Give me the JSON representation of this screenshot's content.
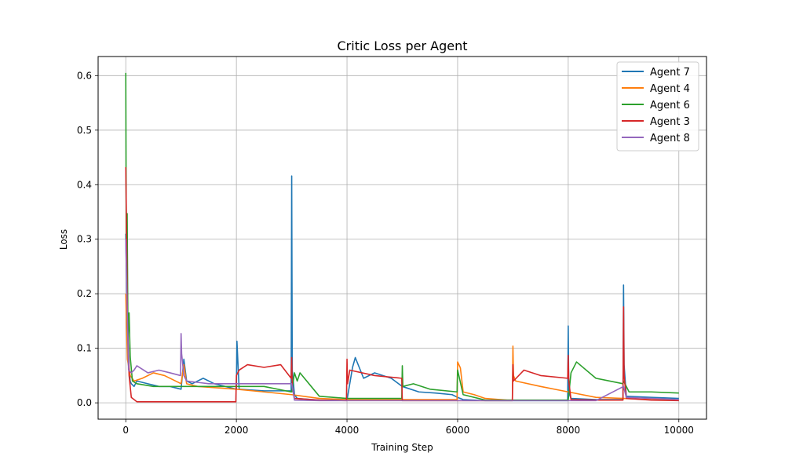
{
  "chart_data": {
    "type": "line",
    "title": "Critic Loss per Agent",
    "xlabel": "Training Step",
    "ylabel": "Loss",
    "xlim": [
      -500,
      10500
    ],
    "ylim": [
      -0.03,
      0.635
    ],
    "xticks": [
      0,
      2000,
      4000,
      6000,
      8000,
      10000
    ],
    "xtick_labels": [
      "0",
      "2000",
      "4000",
      "6000",
      "8000",
      "10000"
    ],
    "yticks": [
      0.0,
      0.1,
      0.2,
      0.3,
      0.4,
      0.5,
      0.6
    ],
    "ytick_labels": [
      "0.0",
      "0.1",
      "0.2",
      "0.3",
      "0.4",
      "0.5",
      "0.6"
    ],
    "grid": true,
    "legend_position": "top-right",
    "series": [
      {
        "name": "Agent 7",
        "color": "#1f77b4",
        "x": [
          0,
          20,
          40,
          60,
          80,
          100,
          150,
          200,
          400,
          600,
          800,
          1000,
          1050,
          1100,
          1200,
          1400,
          1600,
          1800,
          2000,
          2010,
          2050,
          2500,
          2990,
          3000,
          3010,
          3050,
          3100,
          3500,
          4000,
          4100,
          4150,
          4300,
          4500,
          4800,
          5000,
          5300,
          5600,
          5900,
          6000,
          6100,
          6500,
          7000,
          7500,
          7990,
          8000,
          8010,
          8050,
          8500,
          8990,
          9000,
          9010,
          9050,
          9500,
          10000
        ],
        "y": [
          0.31,
          0.2,
          0.12,
          0.06,
          0.04,
          0.035,
          0.03,
          0.04,
          0.035,
          0.03,
          0.03,
          0.025,
          0.08,
          0.04,
          0.035,
          0.045,
          0.035,
          0.03,
          0.025,
          0.113,
          0.025,
          0.022,
          0.022,
          0.416,
          0.06,
          0.015,
          0.008,
          0.005,
          0.005,
          0.065,
          0.083,
          0.045,
          0.055,
          0.045,
          0.03,
          0.02,
          0.018,
          0.015,
          0.01,
          0.006,
          0.004,
          0.004,
          0.004,
          0.004,
          0.141,
          0.02,
          0.008,
          0.006,
          0.006,
          0.216,
          0.07,
          0.012,
          0.01,
          0.008
        ]
      },
      {
        "name": "Agent 4",
        "color": "#ff7f0e",
        "x": [
          0,
          30,
          80,
          150,
          300,
          500,
          700,
          1000,
          1050,
          1100,
          1300,
          2000,
          2500,
          3000,
          3500,
          4000,
          4500,
          5000,
          5500,
          5990,
          6000,
          6050,
          6100,
          6300,
          6500,
          6900,
          6990,
          7000,
          7010,
          7050,
          7500,
          8000,
          8500,
          9000,
          9500,
          10000
        ],
        "y": [
          0.2,
          0.08,
          0.05,
          0.04,
          0.045,
          0.055,
          0.05,
          0.035,
          0.07,
          0.035,
          0.03,
          0.025,
          0.02,
          0.015,
          0.008,
          0.006,
          0.006,
          0.006,
          0.006,
          0.006,
          0.075,
          0.064,
          0.02,
          0.015,
          0.008,
          0.005,
          0.005,
          0.104,
          0.05,
          0.04,
          0.03,
          0.02,
          0.01,
          0.008,
          0.006,
          0.005
        ]
      },
      {
        "name": "Agent 6",
        "color": "#2ca02c",
        "x": [
          0,
          10,
          25,
          40,
          60,
          80,
          120,
          200,
          500,
          1000,
          1100,
          1500,
          2000,
          2500,
          2990,
          3000,
          3050,
          3100,
          3150,
          3500,
          4000,
          4500,
          4990,
          5000,
          5010,
          5200,
          5500,
          5990,
          6000,
          6100,
          6500,
          7000,
          7500,
          8000,
          8050,
          8150,
          8500,
          8990,
          9000,
          9100,
          9500,
          10000
        ],
        "y": [
          0.605,
          0.25,
          0.347,
          0.12,
          0.165,
          0.085,
          0.04,
          0.035,
          0.03,
          0.03,
          0.03,
          0.03,
          0.03,
          0.03,
          0.02,
          0.02,
          0.055,
          0.04,
          0.055,
          0.012,
          0.008,
          0.008,
          0.008,
          0.068,
          0.03,
          0.035,
          0.025,
          0.02,
          0.06,
          0.015,
          0.005,
          0.005,
          0.005,
          0.005,
          0.055,
          0.075,
          0.045,
          0.035,
          0.04,
          0.02,
          0.02,
          0.018
        ]
      },
      {
        "name": "Agent 3",
        "color": "#d62728",
        "x": [
          0,
          10,
          30,
          60,
          100,
          200,
          1000,
          1990,
          2000,
          2050,
          2200,
          2500,
          2800,
          2990,
          3000,
          3010,
          3050,
          3500,
          3990,
          4000,
          4010,
          4050,
          4500,
          4990,
          5000,
          5500,
          6000,
          6500,
          6990,
          7000,
          7010,
          7200,
          7500,
          7990,
          8000,
          8010,
          8050,
          8500,
          8990,
          9000,
          9010,
          9050,
          9500,
          10000
        ],
        "y": [
          0.432,
          0.35,
          0.15,
          0.05,
          0.01,
          0.002,
          0.002,
          0.002,
          0.05,
          0.06,
          0.07,
          0.065,
          0.07,
          0.045,
          0.083,
          0.03,
          0.008,
          0.005,
          0.004,
          0.08,
          0.035,
          0.06,
          0.05,
          0.045,
          0.004,
          0.004,
          0.004,
          0.004,
          0.004,
          0.07,
          0.04,
          0.06,
          0.05,
          0.045,
          0.087,
          0.04,
          0.006,
          0.005,
          0.005,
          0.176,
          0.05,
          0.008,
          0.005,
          0.004
        ]
      },
      {
        "name": "Agent 8",
        "color": "#9467bd",
        "x": [
          0,
          20,
          50,
          100,
          150,
          200,
          400,
          600,
          800,
          990,
          1000,
          1010,
          1050,
          1100,
          1500,
          2000,
          2500,
          2990,
          3000,
          3050,
          3500,
          4000,
          4500,
          5000,
          5500,
          6000,
          6500,
          7000,
          7500,
          8000,
          8500,
          9000,
          9050,
          9500,
          10000
        ],
        "y": [
          0.3,
          0.2,
          0.06,
          0.055,
          0.06,
          0.068,
          0.055,
          0.06,
          0.055,
          0.05,
          0.127,
          0.09,
          0.05,
          0.04,
          0.035,
          0.035,
          0.035,
          0.035,
          0.035,
          0.005,
          0.004,
          0.004,
          0.004,
          0.004,
          0.004,
          0.004,
          0.004,
          0.004,
          0.004,
          0.004,
          0.004,
          0.03,
          0.01,
          0.008,
          0.006
        ]
      }
    ]
  }
}
